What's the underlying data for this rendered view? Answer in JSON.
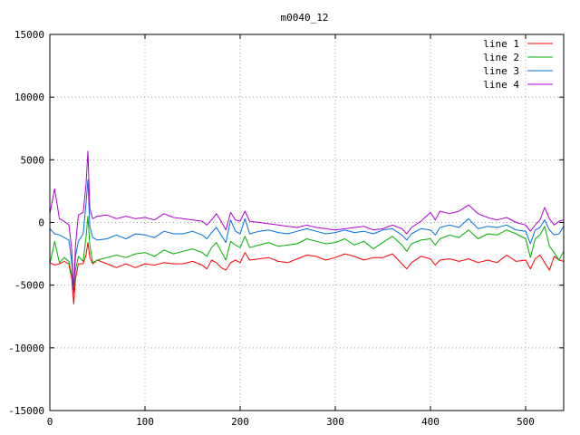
{
  "chart_data": {
    "type": "line",
    "title": "m0040_12",
    "xlabel": "",
    "ylabel": "",
    "xlim": [
      0,
      540
    ],
    "ylim": [
      -15000,
      15000
    ],
    "xticks": [
      0,
      100,
      200,
      300,
      400,
      500
    ],
    "yticks": [
      -15000,
      -10000,
      -5000,
      0,
      5000,
      10000,
      15000
    ],
    "grid": true,
    "legend_position": "top-right",
    "series": [
      {
        "name": "line 1",
        "color": "#ff0000",
        "x": [
          0,
          5,
          10,
          15,
          20,
          23,
          25,
          27,
          30,
          35,
          38,
          40,
          42,
          45,
          50,
          60,
          70,
          80,
          90,
          100,
          110,
          120,
          130,
          140,
          150,
          160,
          165,
          170,
          175,
          180,
          185,
          190,
          195,
          200,
          205,
          210,
          220,
          230,
          240,
          250,
          260,
          270,
          280,
          290,
          300,
          310,
          320,
          330,
          340,
          350,
          360,
          370,
          375,
          380,
          390,
          400,
          405,
          410,
          420,
          430,
          440,
          450,
          460,
          470,
          480,
          490,
          500,
          505,
          510,
          515,
          520,
          525,
          530,
          535,
          540
        ],
        "y": [
          -3200,
          -3400,
          -3300,
          -3100,
          -3300,
          -4500,
          -6500,
          -4500,
          -3300,
          -3300,
          -2600,
          -1600,
          -2800,
          -3300,
          -3000,
          -3300,
          -3600,
          -3300,
          -3600,
          -3300,
          -3400,
          -3200,
          -3300,
          -3300,
          -3100,
          -3400,
          -3700,
          -3000,
          -3200,
          -3600,
          -3800,
          -3200,
          -3000,
          -3200,
          -2400,
          -3000,
          -2900,
          -2800,
          -3100,
          -3200,
          -2900,
          -2600,
          -2700,
          -3000,
          -2800,
          -2500,
          -2700,
          -3000,
          -2800,
          -2800,
          -2500,
          -3300,
          -3700,
          -3200,
          -2700,
          -2900,
          -3400,
          -3000,
          -2900,
          -3100,
          -2900,
          -3200,
          -3000,
          -3200,
          -2600,
          -3100,
          -3000,
          -3700,
          -2900,
          -2600,
          -3200,
          -3800,
          -2700,
          -3000,
          -3100
        ]
      },
      {
        "name": "line 2",
        "color": "#00b000",
        "x": [
          0,
          5,
          10,
          15,
          20,
          23,
          25,
          27,
          30,
          35,
          38,
          40,
          42,
          45,
          50,
          60,
          70,
          80,
          90,
          100,
          110,
          120,
          130,
          140,
          150,
          160,
          165,
          170,
          175,
          180,
          185,
          190,
          195,
          200,
          205,
          210,
          220,
          230,
          240,
          250,
          260,
          270,
          280,
          290,
          300,
          310,
          320,
          330,
          340,
          350,
          360,
          370,
          375,
          380,
          390,
          400,
          405,
          410,
          420,
          430,
          440,
          450,
          460,
          470,
          480,
          490,
          500,
          505,
          510,
          515,
          520,
          525,
          530,
          535,
          540
        ],
        "y": [
          -3300,
          -1500,
          -3200,
          -2800,
          -3100,
          -4200,
          -5400,
          -3800,
          -2700,
          -3100,
          -1200,
          500,
          -1800,
          -3200,
          -3000,
          -2800,
          -2600,
          -2800,
          -2500,
          -2400,
          -2700,
          -2200,
          -2500,
          -2300,
          -2100,
          -2400,
          -2700,
          -2000,
          -1600,
          -2300,
          -3000,
          -1500,
          -1800,
          -2000,
          -1100,
          -2000,
          -1800,
          -1600,
          -1900,
          -1800,
          -1700,
          -1300,
          -1500,
          -1700,
          -1600,
          -1300,
          -1800,
          -1500,
          -2100,
          -1600,
          -1100,
          -1800,
          -2300,
          -1700,
          -1400,
          -1300,
          -1800,
          -1300,
          -1000,
          -1200,
          -600,
          -1300,
          -900,
          -1000,
          -600,
          -900,
          -1300,
          -2800,
          -1300,
          -1000,
          -300,
          -1900,
          -2400,
          -3000,
          -2300
        ]
      },
      {
        "name": "line 3",
        "color": "#0070e0",
        "x": [
          0,
          5,
          10,
          15,
          20,
          23,
          25,
          27,
          30,
          35,
          38,
          40,
          42,
          45,
          50,
          60,
          70,
          80,
          90,
          100,
          110,
          120,
          130,
          140,
          150,
          160,
          165,
          170,
          175,
          180,
          185,
          190,
          195,
          200,
          205,
          210,
          220,
          230,
          240,
          250,
          260,
          270,
          280,
          290,
          300,
          310,
          320,
          330,
          340,
          350,
          360,
          370,
          375,
          380,
          390,
          400,
          405,
          410,
          420,
          430,
          440,
          450,
          460,
          470,
          480,
          490,
          500,
          505,
          510,
          515,
          520,
          525,
          530,
          535,
          540
        ],
        "y": [
          -500,
          -900,
          -1000,
          -1200,
          -1400,
          -3200,
          -5200,
          -2700,
          -1500,
          -900,
          1500,
          3400,
          -300,
          -1200,
          -1400,
          -1300,
          -1000,
          -1300,
          -900,
          -1000,
          -1200,
          -700,
          -900,
          -900,
          -700,
          -1000,
          -1300,
          -800,
          -400,
          -1000,
          -1600,
          200,
          -700,
          -900,
          300,
          -900,
          -700,
          -600,
          -800,
          -900,
          -700,
          -500,
          -700,
          -900,
          -800,
          -600,
          -800,
          -700,
          -900,
          -600,
          -500,
          -1000,
          -1400,
          -900,
          -500,
          -600,
          -1000,
          -400,
          -200,
          -400,
          300,
          -500,
          -300,
          -400,
          -200,
          -600,
          -700,
          -1700,
          -600,
          -400,
          200,
          -600,
          -1000,
          -900,
          -300
        ]
      },
      {
        "name": "line 4",
        "color": "#b000d0",
        "x": [
          0,
          5,
          10,
          15,
          20,
          23,
          25,
          27,
          30,
          35,
          38,
          40,
          42,
          45,
          50,
          60,
          70,
          80,
          90,
          100,
          110,
          120,
          130,
          140,
          150,
          160,
          165,
          170,
          175,
          180,
          185,
          190,
          195,
          200,
          205,
          210,
          220,
          230,
          240,
          250,
          260,
          270,
          280,
          290,
          300,
          310,
          320,
          330,
          340,
          350,
          360,
          370,
          375,
          380,
          390,
          400,
          405,
          410,
          420,
          430,
          440,
          450,
          460,
          470,
          480,
          490,
          500,
          505,
          510,
          515,
          520,
          525,
          530,
          535,
          540
        ],
        "y": [
          700,
          2700,
          300,
          100,
          -200,
          -2200,
          -5600,
          -1800,
          600,
          800,
          3000,
          5700,
          1100,
          300,
          500,
          600,
          300,
          500,
          300,
          400,
          200,
          700,
          400,
          300,
          200,
          100,
          -200,
          200,
          700,
          100,
          -600,
          800,
          200,
          100,
          900,
          100,
          0,
          -100,
          -200,
          -300,
          -400,
          -200,
          -400,
          -500,
          -600,
          -500,
          -400,
          -300,
          -600,
          -500,
          -200,
          -500,
          -900,
          -400,
          100,
          800,
          200,
          900,
          700,
          900,
          1400,
          700,
          400,
          200,
          400,
          0,
          -200,
          -700,
          -200,
          200,
          1200,
          300,
          -200,
          100,
          200
        ]
      }
    ]
  }
}
